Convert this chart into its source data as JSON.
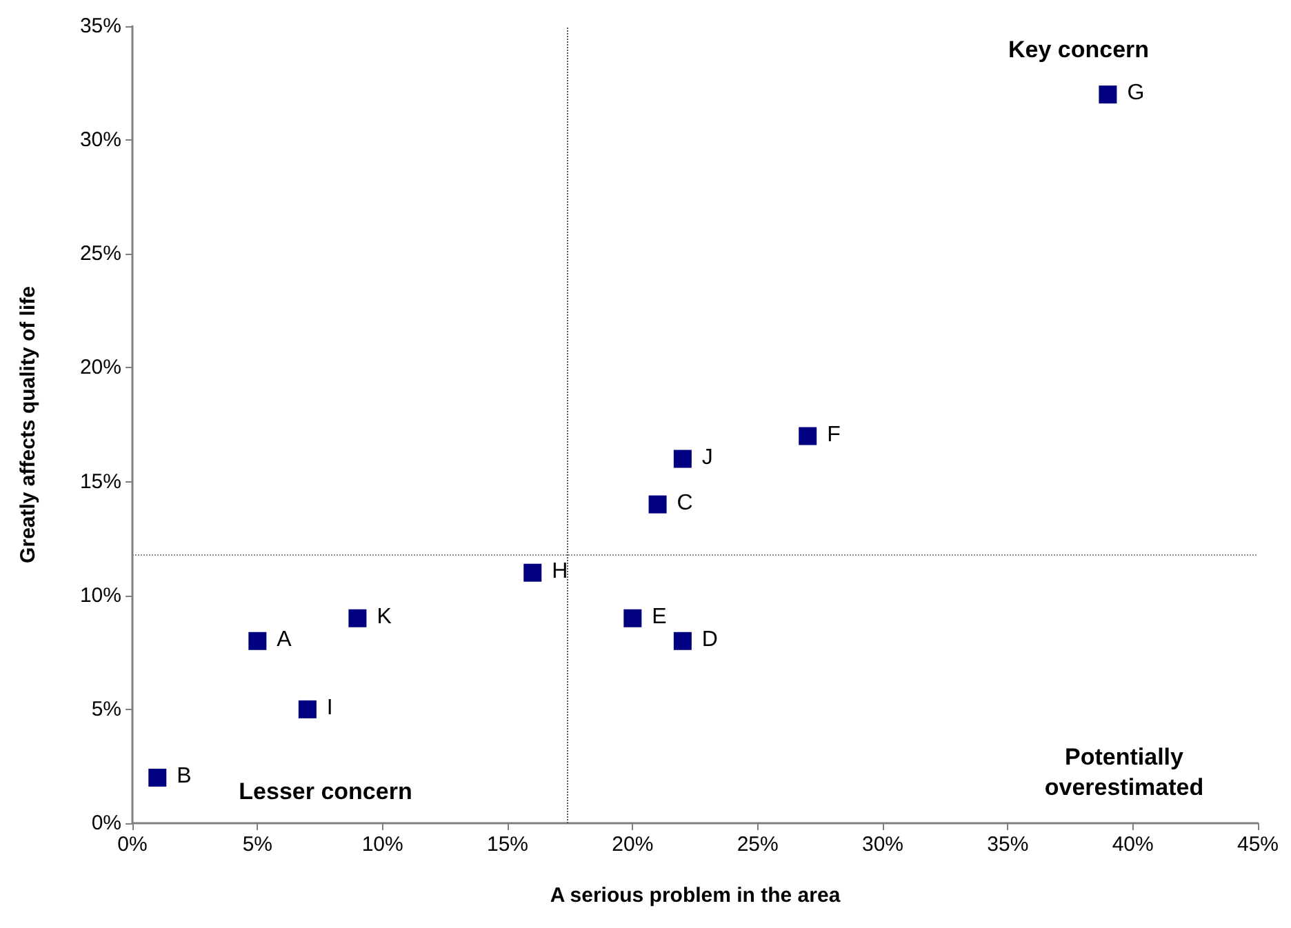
{
  "chart_data": {
    "type": "scatter",
    "xlabel": "A serious problem in the area",
    "ylabel": "Greatly affects quality of life",
    "x": [
      5,
      1,
      21,
      22,
      20,
      27,
      39,
      16,
      7,
      22,
      9
    ],
    "values": [
      8,
      2,
      14,
      8,
      9,
      17,
      32,
      11,
      5,
      16,
      9
    ],
    "color": "#000080",
    "marker": "square",
    "grid": false,
    "xlim": [
      0,
      45
    ],
    "ylim": [
      0,
      35
    ],
    "xticks": [
      {
        "value": 0,
        "label": "0%"
      },
      {
        "value": 5,
        "label": "5%"
      },
      {
        "value": 10,
        "label": "10%"
      },
      {
        "value": 15,
        "label": "15%"
      },
      {
        "value": 20,
        "label": "20%"
      },
      {
        "value": 25,
        "label": "25%"
      },
      {
        "value": 30,
        "label": "30%"
      },
      {
        "value": 35,
        "label": "35%"
      },
      {
        "value": 40,
        "label": "40%"
      },
      {
        "value": 45,
        "label": "45%"
      }
    ],
    "yticks": [
      {
        "value": 0,
        "label": "0%"
      },
      {
        "value": 5,
        "label": "5%"
      },
      {
        "value": 10,
        "label": "10%"
      },
      {
        "value": 15,
        "label": "15%"
      },
      {
        "value": 20,
        "label": "20%"
      },
      {
        "value": 25,
        "label": "25%"
      },
      {
        "value": 30,
        "label": "30%"
      },
      {
        "value": 35,
        "label": "35%"
      }
    ],
    "ref_lines": [
      {
        "axis": "x",
        "value": 17.4,
        "color": "#555555",
        "line_style": "dotted"
      },
      {
        "axis": "y",
        "value": 11.8,
        "color": "#888888",
        "line_style": "dotted"
      }
    ],
    "annotations": [
      "Key concern",
      "Lesser concern",
      "Potentially\noverestimated",
      {
        "text": "A",
        "x": 5,
        "y": 8
      },
      {
        "text": "B",
        "x": 1,
        "y": 2
      },
      {
        "text": "C",
        "x": 21,
        "y": 14
      },
      {
        "text": "D",
        "x": 22,
        "y": 8
      },
      {
        "text": "E",
        "x": 20,
        "y": 9
      },
      {
        "text": "F",
        "x": 27,
        "y": 17
      },
      {
        "text": "G",
        "x": 39,
        "y": 32
      },
      {
        "text": "H",
        "x": 16,
        "y": 11
      },
      {
        "text": "I",
        "x": 7,
        "y": 5
      },
      {
        "text": "J",
        "x": 22,
        "y": 16
      },
      {
        "text": "K",
        "x": 9,
        "y": 9
      }
    ]
  }
}
